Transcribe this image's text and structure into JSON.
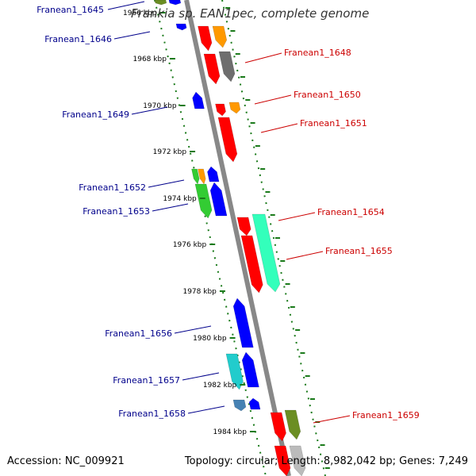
{
  "title": "Frankia sp. EAN1pec, complete genome",
  "accession": "Accession: NC_009921",
  "topology": "Topology: circular; Length: 8,982,042 bp; Genes: 7,249",
  "colors": {
    "backbone": "#888888",
    "tick": "#1a7a1a",
    "left_label": "#00008b",
    "right_label": "#cc0000",
    "red": "#ff0000",
    "orange": "#ff9900",
    "gray": "#6e6e6e",
    "blue": "#0000ff",
    "green": "#33cc33",
    "teal": "#33ffbb",
    "cyan": "#22cccc",
    "steel": "#4682b4",
    "olive": "#6b8e23",
    "silver": "#bbbbbb"
  },
  "ticks": [
    {
      "label": "1966 kbp"
    },
    {
      "label": "1968 kbp"
    },
    {
      "label": "1970 kbp"
    },
    {
      "label": "1972 kbp"
    },
    {
      "label": "1974 kbp"
    },
    {
      "label": "1976 kbp"
    },
    {
      "label": "1978 kbp"
    },
    {
      "label": "1980 kbp"
    },
    {
      "label": "1982 kbp"
    },
    {
      "label": "1984 kbp"
    }
  ],
  "genes_left": [
    {
      "label": "Franean1_1645"
    },
    {
      "label": "Franean1_1646"
    },
    {
      "label": "Franean1_1649"
    },
    {
      "label": "Franean1_1652"
    },
    {
      "label": "Franean1_1653"
    },
    {
      "label": "Franean1_1656"
    },
    {
      "label": "Franean1_1657"
    },
    {
      "label": "Franean1_1658"
    }
  ],
  "genes_right": [
    {
      "label": "Franean1_1648"
    },
    {
      "label": "Franean1_1650"
    },
    {
      "label": "Franean1_1651"
    },
    {
      "label": "Franean1_1654"
    },
    {
      "label": "Franean1_1655"
    },
    {
      "label": "Franean1_1659"
    }
  ]
}
